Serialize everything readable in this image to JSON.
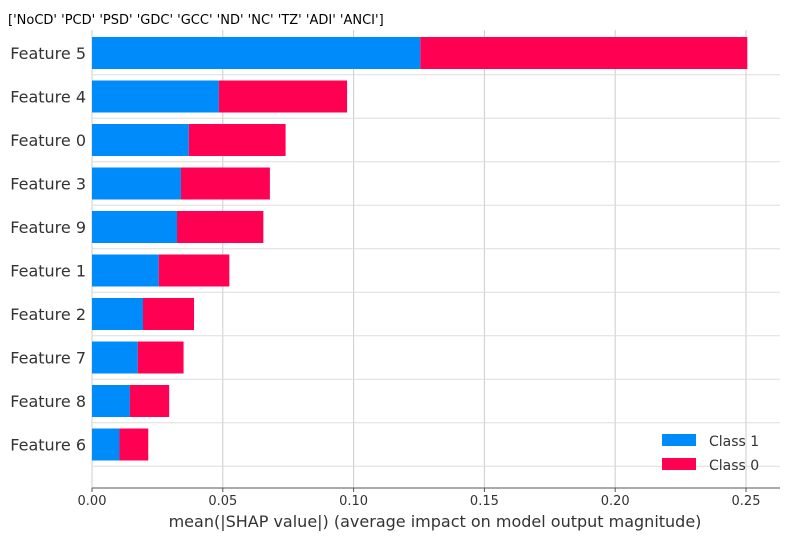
{
  "chart_data": {
    "type": "bar",
    "stacked": true,
    "orientation": "horizontal",
    "title": "['NoCD' 'PCD' 'PSD' 'GDC' 'GCC' 'ND' 'NC' 'TZ' 'ADI' 'ANCI']",
    "xlabel": "mean(|SHAP value|) (average impact on model output magnitude)",
    "ylabel": "",
    "xlim": [
      0,
      0.26
    ],
    "xticks": [
      0.0,
      0.05,
      0.1,
      0.15,
      0.2,
      0.25
    ],
    "xtick_labels": [
      "0.00",
      "0.05",
      "0.10",
      "0.15",
      "0.20",
      "0.25"
    ],
    "categories": [
      "Feature 5",
      "Feature 4",
      "Feature 0",
      "Feature 3",
      "Feature 9",
      "Feature 1",
      "Feature 2",
      "Feature 7",
      "Feature 8",
      "Feature 6"
    ],
    "series": [
      {
        "name": "Class 1",
        "color": "#008bfb",
        "values": [
          0.1255,
          0.0485,
          0.037,
          0.034,
          0.0325,
          0.0255,
          0.0195,
          0.0175,
          0.0145,
          0.0105
        ]
      },
      {
        "name": "Class 0",
        "color": "#ff0052",
        "values": [
          0.125,
          0.049,
          0.037,
          0.034,
          0.033,
          0.027,
          0.0195,
          0.0175,
          0.015,
          0.011
        ]
      }
    ],
    "grid": "vertical",
    "legend_position": "bottom-right"
  }
}
